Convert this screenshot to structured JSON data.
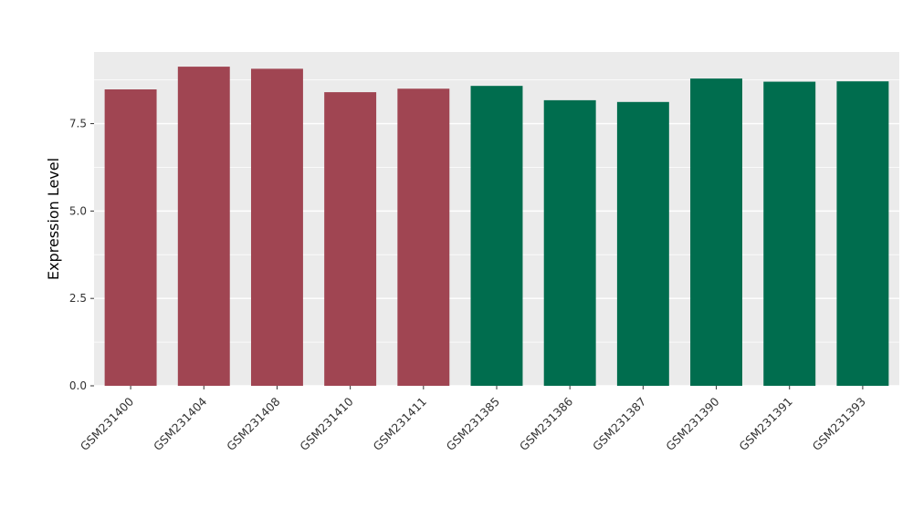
{
  "chart_data": {
    "type": "bar",
    "title": "",
    "xlabel": "",
    "ylabel": "Expression Level",
    "categories": [
      "GSM231400",
      "GSM231404",
      "GSM231408",
      "GSM231410",
      "GSM231411",
      "GSM231385",
      "GSM231386",
      "GSM231387",
      "GSM231390",
      "GSM231391",
      "GSM231393"
    ],
    "values": [
      8.48,
      9.13,
      9.07,
      8.4,
      8.5,
      8.58,
      8.17,
      8.12,
      8.79,
      8.7,
      8.71
    ],
    "bar_colors": [
      "#A04552",
      "#A04552",
      "#A04552",
      "#A04552",
      "#A04552",
      "#006D4E",
      "#006D4E",
      "#006D4E",
      "#006D4E",
      "#006D4E",
      "#006D4E"
    ],
    "groups": [
      {
        "name": "group-1",
        "color": "#A04552",
        "categories": [
          "GSM231400",
          "GSM231404",
          "GSM231408",
          "GSM231410",
          "GSM231411"
        ]
      },
      {
        "name": "group-2",
        "color": "#006D4E",
        "categories": [
          "GSM231385",
          "GSM231386",
          "GSM231387",
          "GSM231390",
          "GSM231391",
          "GSM231393"
        ]
      }
    ],
    "ylim": [
      0,
      9.55
    ],
    "yticks": [
      {
        "label": "0.0",
        "value": 0.0
      },
      {
        "label": "2.5",
        "value": 2.5
      },
      {
        "label": "5.0",
        "value": 5.0
      },
      {
        "label": "7.5",
        "value": 7.5
      }
    ],
    "minor_gridlines": [
      1.25,
      3.75,
      6.25,
      8.75
    ],
    "grid": true,
    "legend_position": "none",
    "panel_background": "#EBEBEB",
    "grid_color": "#FFFFFF",
    "tick_label_color": "#333333",
    "axis_label_color": "#000000"
  }
}
